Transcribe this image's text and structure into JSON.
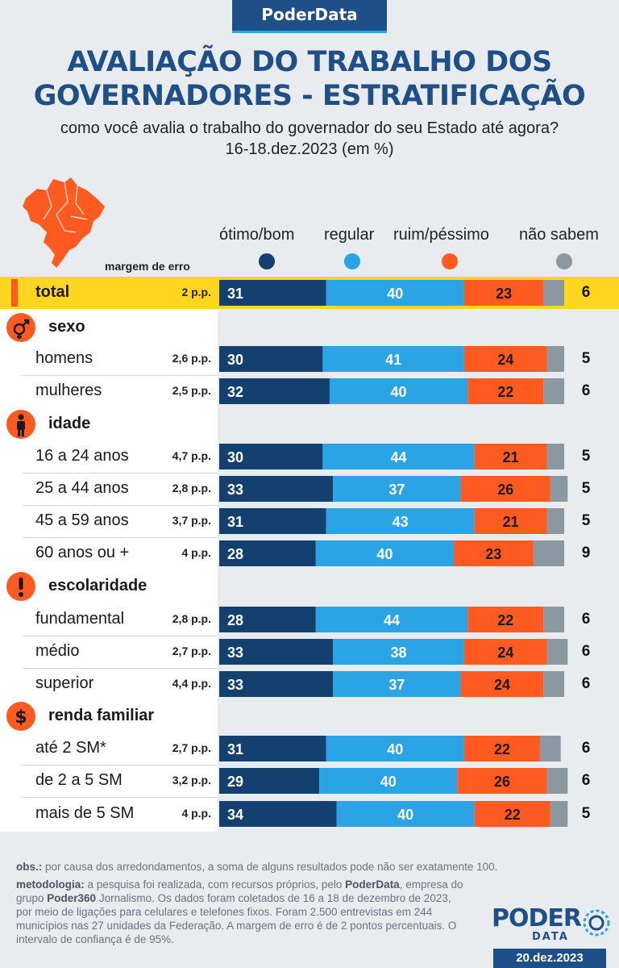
{
  "brand": "PoderData",
  "title_line1": "AVALIAÇÃO DO TRABALHO DOS",
  "title_line2": "GOVERNADORES - ESTRATIFICAÇÃO",
  "subtitle_line1": "como você avalia o trabalho do governador do seu Estado até agora?",
  "subtitle_line2": "16-18.dez.2023 (em %)",
  "margin_header": "margem de erro",
  "colors": {
    "otimo": "#14406f",
    "regular": "#2ba4e6",
    "ruim": "#ff5a1f",
    "nao_sabem": "#8a98a2",
    "accent": "#ffd61f"
  },
  "icons": {
    "sexo": "gender-icon",
    "idade": "person-icon",
    "escolaridade": "exclamation-icon",
    "renda": "dollar-icon"
  },
  "chart_data": {
    "type": "bar",
    "stacked": true,
    "orientation": "horizontal",
    "unit": "%",
    "series": [
      {
        "key": "otimo",
        "name": "ótimo/bom"
      },
      {
        "key": "regular",
        "name": "regular"
      },
      {
        "key": "ruim",
        "name": "ruim/péssimo"
      },
      {
        "key": "nao_sabem",
        "name": "não sabem"
      }
    ],
    "rows": [
      {
        "label": "total",
        "moe": "2 p.p.",
        "values": [
          31,
          40,
          23,
          6
        ],
        "total": true
      },
      {
        "group": "sexo"
      },
      {
        "label": "homens",
        "moe": "2,6 p.p.",
        "values": [
          30,
          41,
          24,
          5
        ]
      },
      {
        "label": "mulheres",
        "moe": "2,5 p.p.",
        "values": [
          32,
          40,
          22,
          6
        ]
      },
      {
        "group": "idade"
      },
      {
        "label": "16 a 24 anos",
        "moe": "4,7 p.p.",
        "values": [
          30,
          44,
          21,
          5
        ]
      },
      {
        "label": "25 a 44 anos",
        "moe": "2,8 p.p.",
        "values": [
          33,
          37,
          26,
          5
        ]
      },
      {
        "label": "45 a 59 anos",
        "moe": "3,7 p.p.",
        "values": [
          31,
          43,
          21,
          5
        ]
      },
      {
        "label": "60 anos ou +",
        "moe": "4 p.p.",
        "values": [
          28,
          40,
          23,
          9
        ]
      },
      {
        "group": "escolaridade"
      },
      {
        "label": "fundamental",
        "moe": "2,8 p.p.",
        "values": [
          28,
          44,
          22,
          6
        ]
      },
      {
        "label": "médio",
        "moe": "2,7 p.p.",
        "values": [
          33,
          38,
          24,
          6
        ]
      },
      {
        "label": "superior",
        "moe": "4,4 p.p.",
        "values": [
          33,
          37,
          24,
          6
        ]
      },
      {
        "group": "renda familiar"
      },
      {
        "label": "até 2 SM*",
        "moe": "2,7 p.p.",
        "values": [
          31,
          40,
          22,
          6
        ]
      },
      {
        "label": "de 2 a 5 SM",
        "moe": "3,2 p.p.",
        "values": [
          29,
          40,
          26,
          6
        ]
      },
      {
        "label": "mais de 5 SM",
        "moe": "4 p.p.",
        "values": [
          34,
          40,
          22,
          5
        ]
      }
    ]
  },
  "notes": {
    "obs_label": "obs.:",
    "obs_text": " por causa dos arredondamentos, a soma de alguns resultados pode não ser exatamente 100.",
    "meth_label": "metodologia:",
    "meth_text_1": " a pesquisa foi realizada, com recursos próprios, pelo ",
    "meth_brand_1": "PoderData",
    "meth_text_2": ", empresa do grupo ",
    "meth_brand_2": "Poder360",
    "meth_text_3": " Jornalismo. Os dados foram coletados de 16 a 18 de dezembro de 2023, por meio de ligações para celulares e telefones fixos. Foram 2.500 entrevistas em 244 municípios nas 27 unidades da Federação. A margem de erro é de 2 pontos percentuais. O intervalo de confiança é de 95%."
  },
  "logo_word": "PODER",
  "logo_sub": "DATA",
  "date": "20.dez.2023"
}
